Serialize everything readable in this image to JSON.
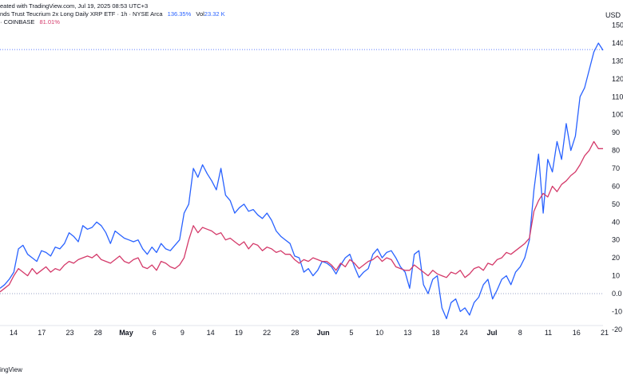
{
  "header": {
    "line1": "eated with TradingView.com, Jul 19, 2025 08:53 UTC+3",
    "line2_title": "nds Trust Teucrium 2x Long Daily XRP ETF · 1h · NYSE Arca",
    "line2_value": "136.35%",
    "line2_vol_label": "Vol",
    "line2_vol_value": "23.32 K",
    "line3_prefix": "· COINBASE",
    "line3_value": "81.01%"
  },
  "footer": {
    "brand": "ingView"
  },
  "colors": {
    "primary_series": "#2962ff",
    "secondary_series": "#d43a6a",
    "grid_zero": "#9aa3c7",
    "price_line": "#5f7cff"
  },
  "chart_data": {
    "type": "line",
    "y_axis_unit": "USD",
    "ylim": [
      -27,
      158
    ],
    "y_ticks": [
      {
        "value": 150,
        "label": "150"
      },
      {
        "value": 140,
        "label": "140"
      },
      {
        "value": 130,
        "label": "130"
      },
      {
        "value": 120,
        "label": "120"
      },
      {
        "value": 110,
        "label": "110"
      },
      {
        "value": 100,
        "label": "100"
      },
      {
        "value": 90,
        "label": "90"
      },
      {
        "value": 80,
        "label": "80"
      },
      {
        "value": 70,
        "label": "70"
      },
      {
        "value": 60,
        "label": "60"
      },
      {
        "value": 50,
        "label": "50"
      },
      {
        "value": 40,
        "label": "40"
      },
      {
        "value": 30,
        "label": "30"
      },
      {
        "value": 20,
        "label": "20"
      },
      {
        "value": 10,
        "label": "10"
      },
      {
        "value": 0,
        "label": "0.0"
      },
      {
        "value": -10,
        "label": "-10"
      },
      {
        "value": -20,
        "label": "-20"
      }
    ],
    "x_ticks": [
      {
        "label": "14",
        "bold": false
      },
      {
        "label": "17",
        "bold": false
      },
      {
        "label": "23",
        "bold": false
      },
      {
        "label": "28",
        "bold": false
      },
      {
        "label": "May",
        "bold": true
      },
      {
        "label": "6",
        "bold": false
      },
      {
        "label": "9",
        "bold": false
      },
      {
        "label": "14",
        "bold": false
      },
      {
        "label": "19",
        "bold": false
      },
      {
        "label": "22",
        "bold": false
      },
      {
        "label": "28",
        "bold": false
      },
      {
        "label": "Jun",
        "bold": true
      },
      {
        "label": "5",
        "bold": false
      },
      {
        "label": "10",
        "bold": false
      },
      {
        "label": "13",
        "bold": false
      },
      {
        "label": "18",
        "bold": false
      },
      {
        "label": "24",
        "bold": false
      },
      {
        "label": "Jul",
        "bold": true
      },
      {
        "label": "8",
        "bold": false
      },
      {
        "label": "11",
        "bold": false
      },
      {
        "label": "16",
        "bold": false
      },
      {
        "label": "21",
        "bold": false
      }
    ],
    "reference_value": 136.35,
    "series": [
      {
        "values": [
          3,
          5,
          8,
          12,
          25,
          27,
          22,
          20,
          18,
          24,
          23,
          21,
          26,
          25,
          28,
          34,
          32,
          29,
          38,
          36,
          37,
          40,
          38,
          34,
          28,
          35,
          33,
          31,
          30,
          29,
          30,
          25,
          22,
          26,
          23,
          28,
          25,
          24,
          27,
          30,
          45,
          50,
          70,
          65,
          72,
          67,
          63,
          58,
          70,
          55,
          52,
          45,
          48,
          50,
          46,
          47,
          44,
          42,
          45,
          41,
          35,
          32,
          30,
          28,
          21,
          20,
          12,
          14,
          10,
          13,
          18,
          17,
          15,
          11,
          16,
          20,
          22,
          15,
          9,
          12,
          14,
          22,
          25,
          20,
          23,
          24,
          20,
          15,
          12,
          3,
          22,
          24,
          5,
          0,
          8,
          10,
          -8,
          -14,
          -5,
          -3,
          -10,
          -8,
          -12,
          -5,
          -2,
          5,
          8,
          -3,
          2,
          8,
          10,
          5,
          12,
          15,
          20,
          30,
          58,
          78,
          45,
          75,
          68,
          85,
          75,
          95,
          80,
          88,
          110,
          115,
          125,
          135,
          140,
          136
        ]
      },
      {
        "values": [
          1,
          3,
          5,
          10,
          14,
          12,
          10,
          14,
          11,
          13,
          15,
          12,
          14,
          13,
          16,
          18,
          17,
          19,
          20,
          21,
          20,
          22,
          19,
          18,
          17,
          19,
          21,
          18,
          17,
          19,
          20,
          15,
          14,
          16,
          13,
          18,
          17,
          15,
          14,
          16,
          20,
          30,
          38,
          34,
          37,
          36,
          35,
          33,
          34,
          30,
          31,
          29,
          27,
          29,
          25,
          28,
          27,
          24,
          26,
          25,
          23,
          24,
          22,
          22,
          19,
          17,
          19,
          18,
          20,
          19,
          18,
          18,
          16,
          13,
          17,
          15,
          19,
          17,
          14,
          16,
          18,
          19,
          21,
          18,
          20,
          19,
          15,
          14,
          13,
          13,
          16,
          14,
          12,
          10,
          13,
          11,
          10,
          9,
          12,
          11,
          13,
          9,
          11,
          14,
          15,
          13,
          17,
          16,
          19,
          20,
          23,
          22,
          24,
          26,
          28,
          31,
          46,
          52,
          56,
          54,
          60,
          57,
          61,
          63,
          66,
          68,
          72,
          77,
          80,
          85,
          81,
          81
        ]
      }
    ]
  }
}
